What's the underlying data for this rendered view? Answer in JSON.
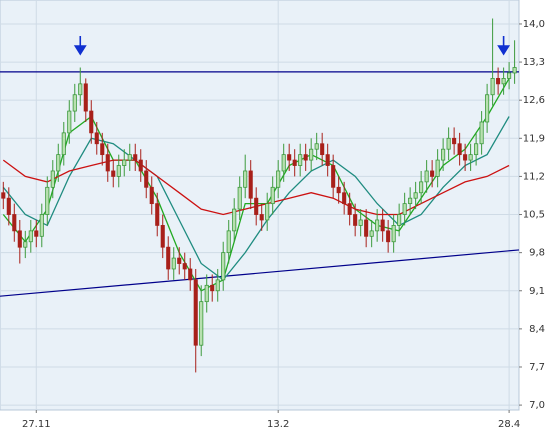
{
  "chart_data": {
    "type": "candlestick",
    "xlim": [
      -0.6,
      93.8
    ],
    "ylim": [
      6.91,
      14.44
    ],
    "xticks": [
      {
        "value": 6,
        "label": "27.11"
      },
      {
        "value": 50,
        "label": "13.2"
      },
      {
        "value": 92,
        "label": "28.4"
      }
    ],
    "yticks": [
      {
        "value": 14.0,
        "label": "14,0"
      },
      {
        "value": 13.3,
        "label": "13,3"
      },
      {
        "value": 12.6,
        "label": "12,6"
      },
      {
        "value": 11.9,
        "label": "11,9"
      },
      {
        "value": 11.2,
        "label": "11,2"
      },
      {
        "value": 10.5,
        "label": "10,5"
      },
      {
        "value": 9.8,
        "label": "9,8"
      },
      {
        "value": 9.1,
        "label": "9,1"
      },
      {
        "value": 8.4,
        "label": "8,4"
      },
      {
        "value": 7.7,
        "label": "7,7"
      },
      {
        "value": 7.0,
        "label": "7,0"
      }
    ],
    "grid": true,
    "up_color": "#3c9a3c",
    "down_color": "#a8201a",
    "open": [
      10.9,
      10.8,
      10.5,
      10.2,
      9.9,
      10.0,
      10.2,
      10.1,
      10.5,
      11.0,
      11.3,
      11.6,
      12.0,
      12.4,
      12.7,
      12.9,
      12.4,
      12.0,
      11.8,
      11.6,
      11.3,
      11.2,
      11.4,
      11.5,
      11.6,
      11.5,
      11.3,
      11.0,
      10.7,
      10.3,
      9.9,
      9.5,
      9.7,
      9.6,
      9.5,
      9.3,
      8.1,
      8.9,
      9.2,
      9.1,
      9.3,
      9.8,
      10.2,
      10.6,
      11.0,
      11.3,
      10.8,
      10.5,
      10.4,
      10.7,
      11.0,
      11.3,
      11.6,
      11.5,
      11.4,
      11.6,
      11.5,
      11.7,
      11.8,
      11.6,
      11.4,
      11.0,
      10.9,
      10.7,
      10.5,
      10.3,
      10.4,
      10.1,
      10.2,
      10.4,
      10.2,
      10.0,
      10.3,
      10.5,
      10.7,
      10.8,
      10.9,
      11.1,
      11.3,
      11.2,
      11.5,
      11.7,
      11.9,
      11.8,
      11.6,
      11.5,
      11.6,
      11.8,
      12.2,
      12.7,
      13.0,
      12.9,
      13.0,
      13.1
    ],
    "high": [
      11.1,
      11.0,
      10.7,
      10.4,
      10.2,
      10.4,
      10.4,
      10.7,
      11.2,
      11.5,
      11.8,
      12.2,
      12.6,
      12.9,
      13.2,
      13.0,
      12.6,
      12.2,
      12.0,
      11.8,
      11.5,
      11.6,
      11.7,
      11.8,
      11.8,
      11.7,
      11.5,
      11.2,
      10.9,
      10.5,
      10.1,
      9.9,
      9.9,
      9.8,
      9.7,
      9.5,
      9.2,
      9.4,
      9.4,
      9.5,
      10.0,
      10.4,
      10.8,
      11.2,
      11.6,
      11.5,
      11.0,
      10.7,
      10.9,
      11.2,
      11.5,
      11.8,
      11.8,
      11.7,
      11.8,
      11.8,
      11.9,
      12.0,
      12.0,
      11.8,
      11.6,
      11.2,
      11.1,
      10.9,
      10.7,
      10.6,
      10.6,
      10.4,
      10.6,
      10.6,
      10.4,
      10.5,
      10.7,
      10.9,
      11.0,
      11.1,
      11.3,
      11.5,
      11.5,
      11.7,
      11.9,
      12.1,
      12.1,
      12.0,
      11.8,
      11.8,
      12.0,
      12.4,
      12.9,
      14.1,
      13.2,
      13.2,
      13.3,
      13.7
    ],
    "low": [
      10.6,
      10.3,
      10.0,
      9.6,
      9.7,
      9.8,
      9.9,
      9.9,
      10.3,
      10.8,
      11.1,
      11.4,
      11.8,
      12.2,
      12.5,
      12.2,
      11.8,
      11.6,
      11.4,
      11.1,
      11.0,
      11.0,
      11.2,
      11.3,
      11.3,
      11.1,
      10.8,
      10.5,
      10.1,
      9.7,
      9.3,
      9.3,
      9.4,
      9.3,
      9.1,
      7.6,
      7.9,
      8.7,
      8.9,
      8.9,
      9.1,
      9.6,
      10.0,
      10.4,
      10.8,
      10.6,
      10.3,
      10.2,
      10.2,
      10.5,
      10.8,
      11.1,
      11.3,
      11.2,
      11.2,
      11.3,
      11.3,
      11.5,
      11.4,
      11.2,
      10.8,
      10.7,
      10.5,
      10.3,
      10.1,
      10.1,
      9.9,
      9.9,
      10.0,
      10.0,
      9.8,
      9.8,
      10.1,
      10.3,
      10.5,
      10.6,
      10.7,
      10.9,
      11.0,
      11.0,
      11.3,
      11.5,
      11.6,
      11.4,
      11.3,
      11.3,
      11.4,
      11.6,
      12.0,
      12.5,
      12.7,
      12.7,
      12.8,
      12.9
    ],
    "close": [
      10.8,
      10.5,
      10.2,
      9.9,
      10.0,
      10.2,
      10.1,
      10.5,
      11.0,
      11.3,
      11.6,
      12.0,
      12.4,
      12.7,
      12.9,
      12.4,
      12.0,
      11.8,
      11.6,
      11.3,
      11.2,
      11.4,
      11.5,
      11.6,
      11.5,
      11.3,
      11.0,
      10.7,
      10.3,
      9.9,
      9.5,
      9.7,
      9.6,
      9.5,
      9.3,
      8.1,
      8.9,
      9.2,
      9.1,
      9.3,
      9.8,
      10.2,
      10.6,
      11.0,
      11.3,
      10.8,
      10.5,
      10.4,
      10.7,
      11.0,
      11.3,
      11.6,
      11.5,
      11.4,
      11.6,
      11.5,
      11.7,
      11.8,
      11.6,
      11.4,
      11.0,
      10.9,
      10.7,
      10.5,
      10.3,
      10.4,
      10.1,
      10.2,
      10.4,
      10.2,
      10.0,
      10.3,
      10.5,
      10.7,
      10.8,
      10.9,
      11.1,
      11.3,
      11.2,
      11.5,
      11.7,
      11.9,
      11.8,
      11.6,
      11.5,
      11.6,
      11.8,
      12.2,
      12.7,
      13.0,
      12.9,
      13.0,
      13.1,
      13.2
    ],
    "ma_x": [
      0,
      4,
      8,
      12,
      16,
      20,
      24,
      28,
      32,
      36,
      40,
      44,
      48,
      52,
      56,
      60,
      64,
      68,
      72,
      76,
      80,
      84,
      88,
      92
    ],
    "series": [
      {
        "color": "#22aa22",
        "values": [
          10.5,
          10.0,
          10.6,
          12.0,
          12.3,
          11.5,
          11.5,
          10.8,
          9.8,
          9.1,
          9.3,
          10.7,
          10.7,
          11.4,
          11.6,
          11.4,
          10.6,
          10.3,
          10.2,
          10.8,
          11.4,
          11.7,
          12.3,
          13.0
        ]
      },
      {
        "color": "#1f8c80",
        "values": [
          11.0,
          10.5,
          10.3,
          11.2,
          11.9,
          11.8,
          11.5,
          11.2,
          10.4,
          9.6,
          9.3,
          9.8,
          10.4,
          10.9,
          11.3,
          11.5,
          11.2,
          10.7,
          10.3,
          10.5,
          11.0,
          11.4,
          11.6,
          12.3
        ]
      },
      {
        "color": "#cc1111",
        "values": [
          11.5,
          11.2,
          11.1,
          11.3,
          11.4,
          11.5,
          11.5,
          11.2,
          10.9,
          10.6,
          10.5,
          10.6,
          10.7,
          10.8,
          10.9,
          10.8,
          10.6,
          10.5,
          10.5,
          10.7,
          10.9,
          11.1,
          11.2,
          11.4
        ]
      }
    ],
    "hline": 13.12,
    "trendline": {
      "x": [
        -0.6,
        93.8
      ],
      "y": [
        9.0,
        9.85
      ]
    },
    "annotation_color": "#00008b",
    "arrow_color": "#1030d0",
    "arrows_x": [
      14,
      91
    ]
  }
}
